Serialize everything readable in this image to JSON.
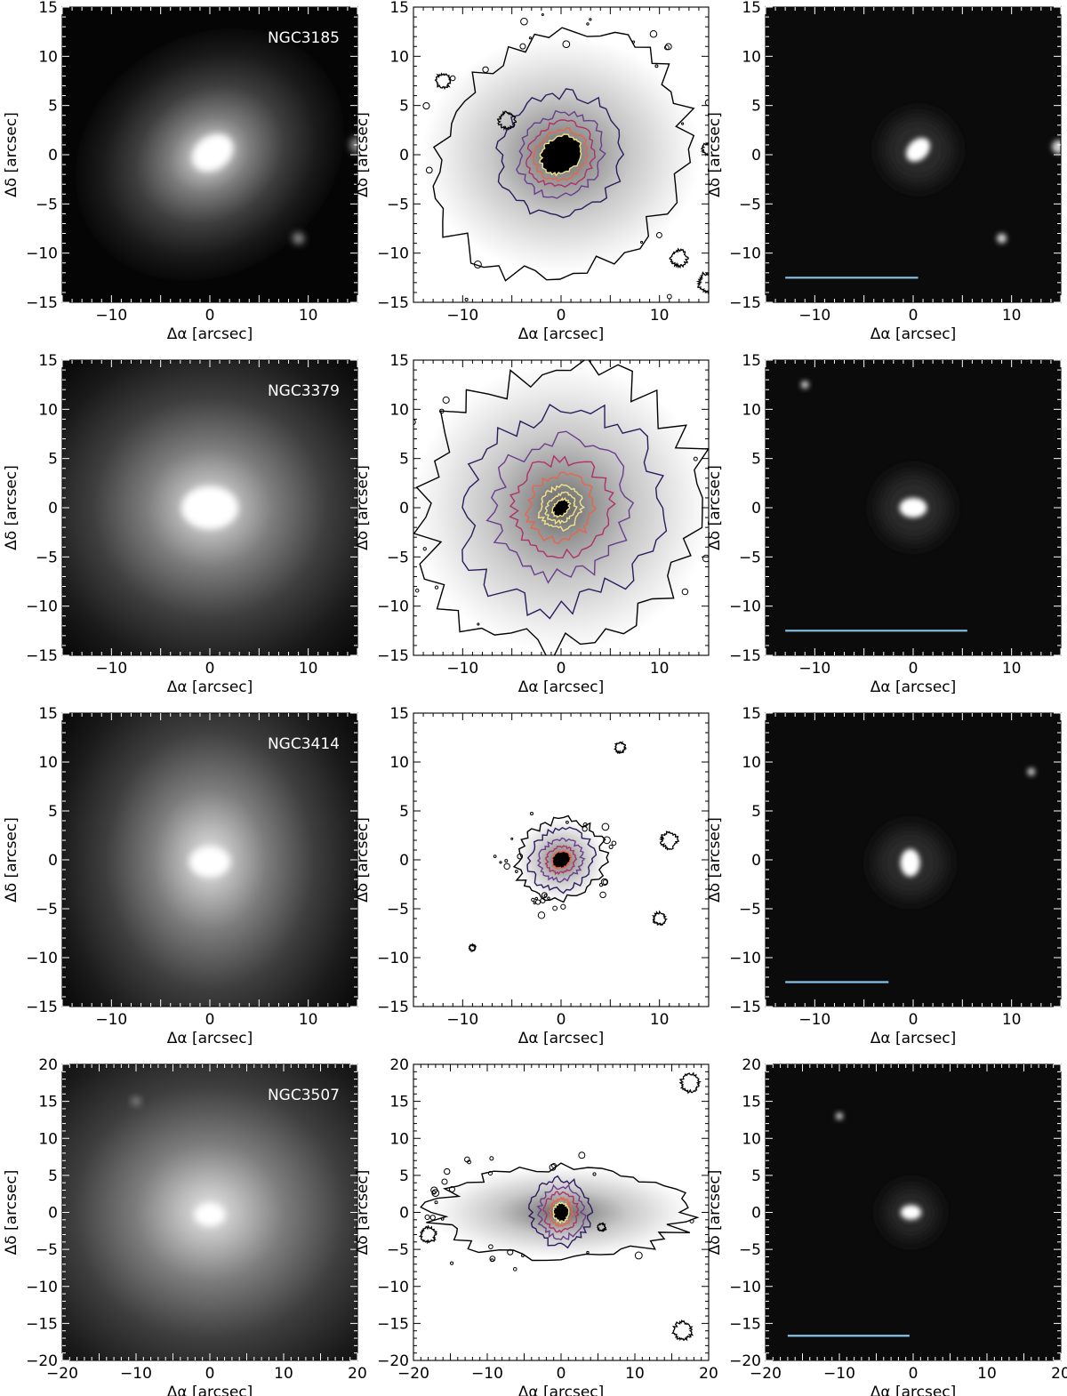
{
  "figure": {
    "xlabel": "Δα [arcsec]",
    "ylabel": "Δδ [arcsec]",
    "scale_bar_color": "#87c3e8",
    "contour_colors": [
      "#000000",
      "#2d1b5e",
      "#6a3d8f",
      "#b0306a",
      "#e8654a",
      "#f3e28a"
    ]
  },
  "rows": [
    {
      "name": "NGC3185",
      "lim": 15,
      "ticks": [
        -15,
        -10,
        -5,
        0,
        5,
        10,
        15
      ],
      "xticks": [
        -10,
        0,
        10
      ],
      "panels": {
        "image": {
          "sigma_x": 6,
          "sigma_y": 5,
          "angle": 35,
          "core_x": 0.3,
          "core_y": 0.2,
          "core_sigma": 1.4,
          "stars": [
            [
              15,
              1,
              0.8
            ],
            [
              9,
              -8.5,
              0.6
            ]
          ]
        },
        "contour": {
          "rings": [
            [
              13.5,
              11.5
            ],
            [
              6.5,
              6
            ],
            [
              4.5,
              4
            ],
            [
              3.5,
              3.1
            ],
            [
              2.8,
              2.4
            ],
            [
              2.2,
              1.8
            ]
          ],
          "angle": 40,
          "noise": 0.18,
          "extra": [
            [
              15,
              0.6,
              0.6
            ],
            [
              -5.5,
              3.5,
              0.8
            ],
            [
              -12,
              7.5,
              0.7
            ],
            [
              12,
              -10.5,
              0.8
            ],
            [
              15,
              -13,
              1
            ]
          ]
        },
        "residual": {
          "core_x": 0.5,
          "core_y": 0.5,
          "angle": 45,
          "stars": [
            [
              14.8,
              0.8,
              0.7
            ],
            [
              9,
              -8.5,
              0.5
            ]
          ],
          "bar_start": -13,
          "bar_end": 0.5
        }
      }
    },
    {
      "name": "NGC3379",
      "lim": 15,
      "ticks": [
        -15,
        -10,
        -5,
        0,
        5,
        10,
        15
      ],
      "xticks": [
        -10,
        0,
        10
      ],
      "panels": {
        "image": {
          "sigma_x": 9,
          "sigma_y": 8.5,
          "angle": 0,
          "core_x": 0,
          "core_y": 0,
          "core_sigma": 1.8,
          "stars": []
        },
        "contour": {
          "rings": [
            [
              14.5,
              14
            ],
            [
              10.5,
              9.5
            ],
            [
              7,
              6.8
            ],
            [
              5,
              4.8
            ],
            [
              3.4,
              3.2
            ],
            [
              2.3,
              2
            ],
            [
              1.6,
              1.3
            ],
            [
              1,
              0.7
            ]
          ],
          "angle": 45,
          "noise": 0.25,
          "extra": []
        },
        "residual": {
          "core_x": 0,
          "core_y": 0,
          "angle": 0,
          "stars": [
            [
              -11,
              12.5,
              0.4
            ]
          ],
          "bar_start": -13,
          "bar_end": 5.5
        }
      }
    },
    {
      "name": "NGC3414",
      "lim": 15,
      "ticks": [
        -15,
        -10,
        -5,
        0,
        5,
        10,
        15
      ],
      "xticks": [
        -10,
        0,
        10
      ],
      "panels": {
        "image": {
          "sigma_x": 8,
          "sigma_y": 10,
          "angle": 0,
          "core_x": 0,
          "core_y": -0.2,
          "core_sigma": 1.3,
          "stars": []
        },
        "contour": {
          "rings": [
            [
              4.5,
              4
            ],
            [
              3.3,
              3
            ],
            [
              2.2,
              2
            ],
            [
              1.5,
              1.3
            ],
            [
              1,
              0.8
            ]
          ],
          "angle": 30,
          "noise": 0.22,
          "extra": [
            [
              -9,
              -9,
              0.3
            ],
            [
              10,
              -6,
              0.6
            ],
            [
              11,
              2,
              0.8
            ],
            [
              6,
              11.5,
              0.5
            ]
          ]
        },
        "residual": {
          "core_x": -0.3,
          "core_y": -0.3,
          "angle": 90,
          "stars": [
            [
              12,
              9,
              0.4
            ]
          ],
          "bar_start": -13,
          "bar_end": -2.5
        }
      }
    },
    {
      "name": "NGC3507",
      "lim": 20,
      "ticks": [
        -20,
        -15,
        -10,
        -5,
        0,
        5,
        10,
        15,
        20
      ],
      "xticks": [
        -20,
        -10,
        0,
        10,
        20
      ],
      "panels": {
        "image": {
          "sigma_x": 14,
          "sigma_y": 13,
          "angle": 0,
          "core_x": 0,
          "core_y": -0.3,
          "core_sigma": 1.3,
          "stars": [
            [
              -10,
              15,
              0.6
            ]
          ]
        },
        "contour": {
          "rings": [
            [
              17,
              6
            ],
            [
              4,
              4.5
            ],
            [
              3,
              3.5
            ],
            [
              2.2,
              2.6
            ],
            [
              1.5,
              1.8
            ],
            [
              1,
              1.3
            ]
          ],
          "angle": 0,
          "noise": 0.25,
          "extra": [
            [
              16.5,
              -16,
              1.2
            ],
            [
              17.5,
              17.5,
              1.2
            ],
            [
              -18,
              -3,
              1
            ],
            [
              5.5,
              -2,
              0.5
            ]
          ]
        },
        "residual": {
          "core_x": -0.3,
          "core_y": 0,
          "angle": 0,
          "stars": [
            [
              -10,
              13,
              0.5
            ]
          ],
          "bar_start": -17,
          "bar_end": -0.5
        }
      }
    }
  ]
}
